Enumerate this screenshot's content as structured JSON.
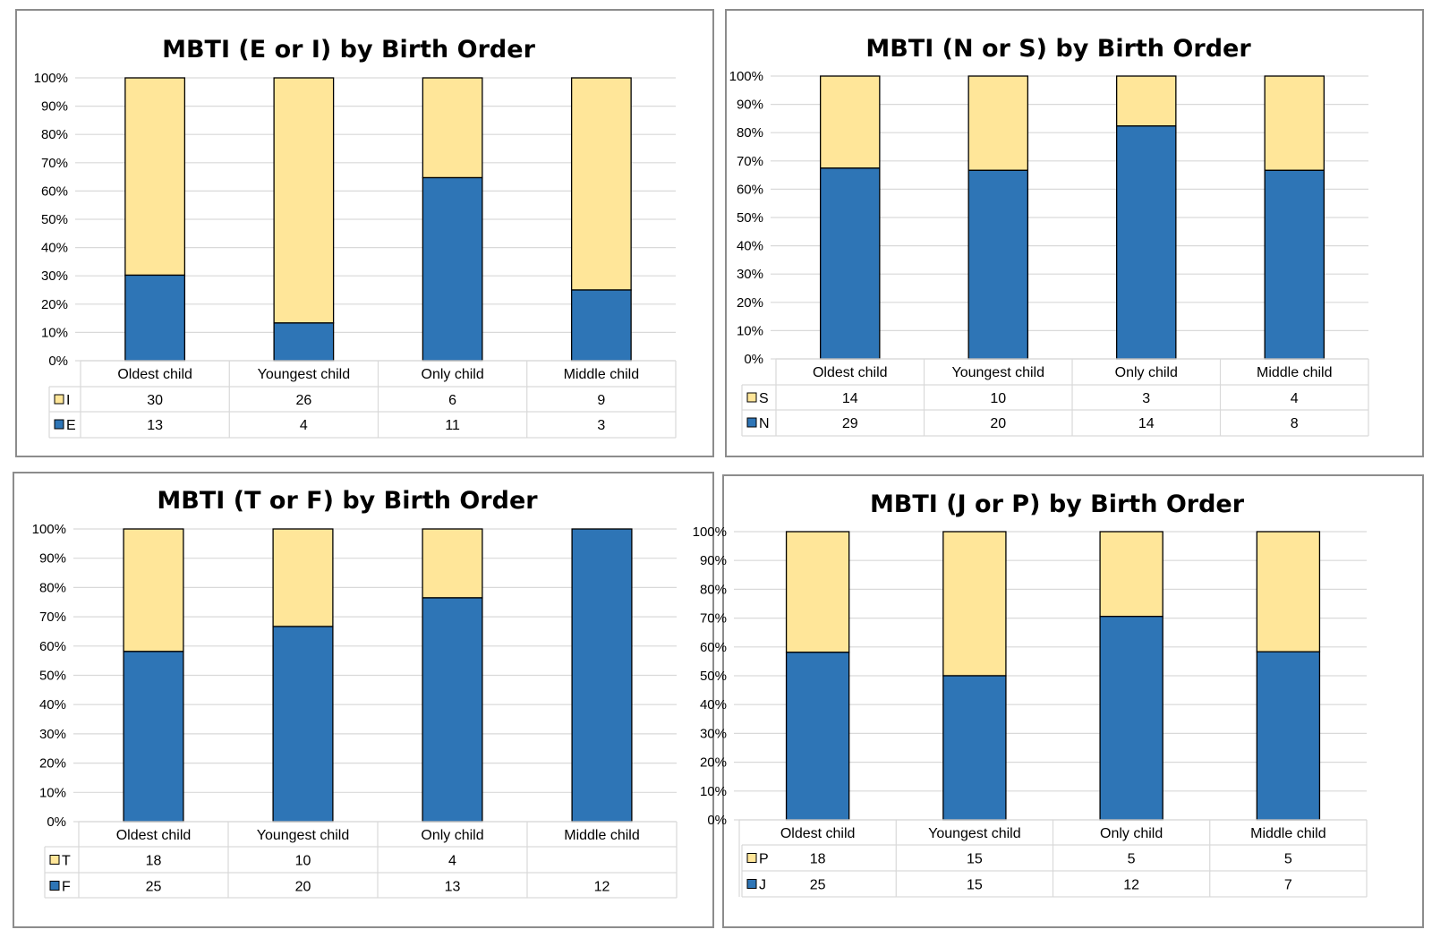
{
  "colors": {
    "bottom": "#2e75b6",
    "top": "#ffe699",
    "grid": "#d9d9d9",
    "border": "#8c8c8c"
  },
  "chart_data": [
    {
      "type": "bar",
      "stacked": "percent",
      "title": "MBTI (E or I) by Birth Order",
      "categories": [
        "Oldest child",
        "Youngest child",
        "Only child",
        "Middle child"
      ],
      "y_ticks": [
        "0%",
        "10%",
        "20%",
        "30%",
        "40%",
        "50%",
        "60%",
        "70%",
        "80%",
        "90%",
        "100%"
      ],
      "ylim": [
        0,
        100
      ],
      "series": [
        {
          "name": "I",
          "position": "top",
          "values": [
            30,
            26,
            6,
            9
          ]
        },
        {
          "name": "E",
          "position": "bottom",
          "values": [
            13,
            4,
            11,
            3
          ]
        }
      ]
    },
    {
      "type": "bar",
      "stacked": "percent",
      "title": "MBTI (N or S) by Birth Order",
      "categories": [
        "Oldest child",
        "Youngest child",
        "Only child",
        "Middle child"
      ],
      "y_ticks": [
        "0%",
        "10%",
        "20%",
        "30%",
        "40%",
        "50%",
        "60%",
        "70%",
        "80%",
        "90%",
        "100%"
      ],
      "ylim": [
        0,
        100
      ],
      "series": [
        {
          "name": "S",
          "position": "top",
          "values": [
            14,
            10,
            3,
            4
          ]
        },
        {
          "name": "N",
          "position": "bottom",
          "values": [
            29,
            20,
            14,
            8
          ]
        }
      ]
    },
    {
      "type": "bar",
      "stacked": "percent",
      "title": "MBTI (T or F) by Birth Order",
      "categories": [
        "Oldest child",
        "Youngest child",
        "Only child",
        "Middle child"
      ],
      "y_ticks": [
        "0%",
        "10%",
        "20%",
        "30%",
        "40%",
        "50%",
        "60%",
        "70%",
        "80%",
        "90%",
        "100%"
      ],
      "ylim": [
        0,
        100
      ],
      "series": [
        {
          "name": "T",
          "position": "top",
          "values": [
            18,
            10,
            4,
            null
          ]
        },
        {
          "name": "F",
          "position": "bottom",
          "values": [
            25,
            20,
            13,
            12
          ]
        }
      ]
    },
    {
      "type": "bar",
      "stacked": "percent",
      "title": "MBTI (J or P) by Birth Order",
      "categories": [
        "Oldest child",
        "Youngest child",
        "Only child",
        "Middle child"
      ],
      "y_ticks": [
        "0%",
        "10%",
        "20%",
        "30%",
        "40%",
        "50%",
        "60%",
        "70%",
        "80%",
        "90%",
        "100%"
      ],
      "ylim": [
        0,
        100
      ],
      "series": [
        {
          "name": "P",
          "position": "top",
          "values": [
            18,
            15,
            5,
            5
          ]
        },
        {
          "name": "J",
          "position": "bottom",
          "values": [
            25,
            15,
            12,
            7
          ]
        }
      ]
    }
  ]
}
